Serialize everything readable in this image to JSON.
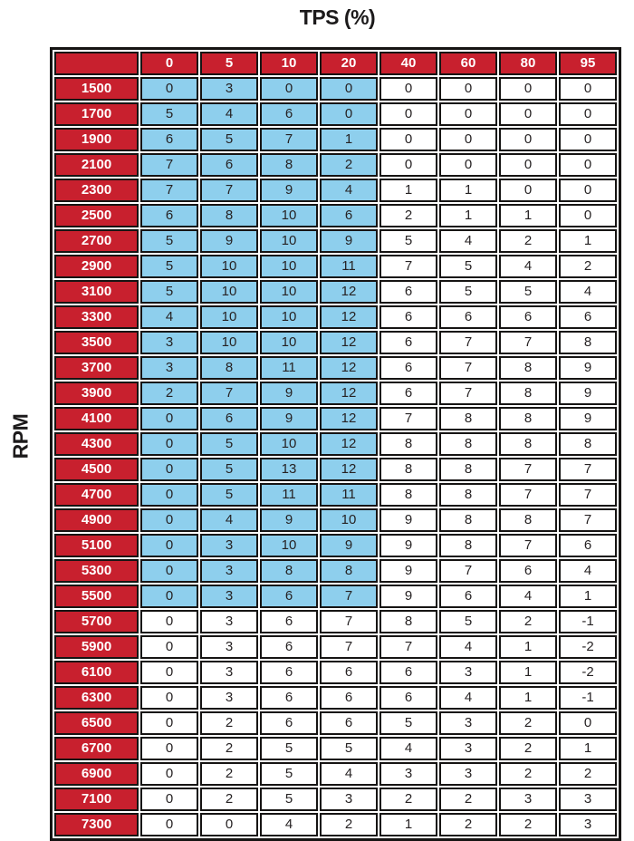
{
  "title": "TPS (%)",
  "row_axis_label": "RPM",
  "colors": {
    "header_red": "#c8202e",
    "highlight_blue": "#8ecfed",
    "border_black": "#161413",
    "header_text": "#ffffff",
    "cell_text": "#262223"
  },
  "chart_data": {
    "type": "table",
    "title": "TPS (%)",
    "column_axis_label": "TPS (%)",
    "row_axis_label": "RPM",
    "columns": [
      "0",
      "5",
      "10",
      "20",
      "40",
      "60",
      "80",
      "95"
    ],
    "rows": [
      {
        "rpm": "1500",
        "values": [
          0,
          3,
          0,
          0,
          0,
          0,
          0,
          0
        ]
      },
      {
        "rpm": "1700",
        "values": [
          5,
          4,
          6,
          0,
          0,
          0,
          0,
          0
        ]
      },
      {
        "rpm": "1900",
        "values": [
          6,
          5,
          7,
          1,
          0,
          0,
          0,
          0
        ]
      },
      {
        "rpm": "2100",
        "values": [
          7,
          6,
          8,
          2,
          0,
          0,
          0,
          0
        ]
      },
      {
        "rpm": "2300",
        "values": [
          7,
          7,
          9,
          4,
          1,
          1,
          0,
          0
        ]
      },
      {
        "rpm": "2500",
        "values": [
          6,
          8,
          10,
          6,
          2,
          1,
          1,
          0
        ]
      },
      {
        "rpm": "2700",
        "values": [
          5,
          9,
          10,
          9,
          5,
          4,
          2,
          1
        ]
      },
      {
        "rpm": "2900",
        "values": [
          5,
          10,
          10,
          11,
          7,
          5,
          4,
          2
        ]
      },
      {
        "rpm": "3100",
        "values": [
          5,
          10,
          10,
          12,
          6,
          5,
          5,
          4
        ]
      },
      {
        "rpm": "3300",
        "values": [
          4,
          10,
          10,
          12,
          6,
          6,
          6,
          6
        ]
      },
      {
        "rpm": "3500",
        "values": [
          3,
          10,
          10,
          12,
          6,
          7,
          7,
          8
        ]
      },
      {
        "rpm": "3700",
        "values": [
          3,
          8,
          11,
          12,
          6,
          7,
          8,
          9
        ]
      },
      {
        "rpm": "3900",
        "values": [
          2,
          7,
          9,
          12,
          6,
          7,
          8,
          9
        ]
      },
      {
        "rpm": "4100",
        "values": [
          0,
          6,
          9,
          12,
          7,
          8,
          8,
          9
        ]
      },
      {
        "rpm": "4300",
        "values": [
          0,
          5,
          10,
          12,
          8,
          8,
          8,
          8
        ]
      },
      {
        "rpm": "4500",
        "values": [
          0,
          5,
          13,
          12,
          8,
          8,
          7,
          7
        ]
      },
      {
        "rpm": "4700",
        "values": [
          0,
          5,
          11,
          11,
          8,
          8,
          7,
          7
        ]
      },
      {
        "rpm": "4900",
        "values": [
          0,
          4,
          9,
          10,
          9,
          8,
          8,
          7
        ]
      },
      {
        "rpm": "5100",
        "values": [
          0,
          3,
          10,
          9,
          9,
          8,
          7,
          6
        ]
      },
      {
        "rpm": "5300",
        "values": [
          0,
          3,
          8,
          8,
          9,
          7,
          6,
          4
        ]
      },
      {
        "rpm": "5500",
        "values": [
          0,
          3,
          6,
          7,
          9,
          6,
          4,
          1
        ]
      },
      {
        "rpm": "5700",
        "values": [
          0,
          3,
          6,
          7,
          8,
          5,
          2,
          -1
        ]
      },
      {
        "rpm": "5900",
        "values": [
          0,
          3,
          6,
          7,
          7,
          4,
          1,
          -2
        ]
      },
      {
        "rpm": "6100",
        "values": [
          0,
          3,
          6,
          6,
          6,
          3,
          1,
          -2
        ]
      },
      {
        "rpm": "6300",
        "values": [
          0,
          3,
          6,
          6,
          6,
          4,
          1,
          -1
        ]
      },
      {
        "rpm": "6500",
        "values": [
          0,
          2,
          6,
          6,
          5,
          3,
          2,
          0
        ]
      },
      {
        "rpm": "6700",
        "values": [
          0,
          2,
          5,
          5,
          4,
          3,
          2,
          1
        ]
      },
      {
        "rpm": "6900",
        "values": [
          0,
          2,
          5,
          4,
          3,
          3,
          2,
          2
        ]
      },
      {
        "rpm": "7100",
        "values": [
          0,
          2,
          5,
          3,
          2,
          2,
          3,
          3
        ]
      },
      {
        "rpm": "7300",
        "values": [
          0,
          0,
          4,
          2,
          1,
          2,
          2,
          3
        ]
      }
    ],
    "highlight_region": {
      "color": "#8ecfed",
      "first_row": "1500",
      "last_row": "5500",
      "first_column": "0",
      "last_column": "20",
      "row_start_index": 0,
      "row_end_index": 20,
      "col_start_index": 0,
      "col_end_index": 3
    },
    "layout": {
      "grid": true,
      "legend": false,
      "title_position": "top-center",
      "row_label_position": "left-rotated"
    }
  }
}
